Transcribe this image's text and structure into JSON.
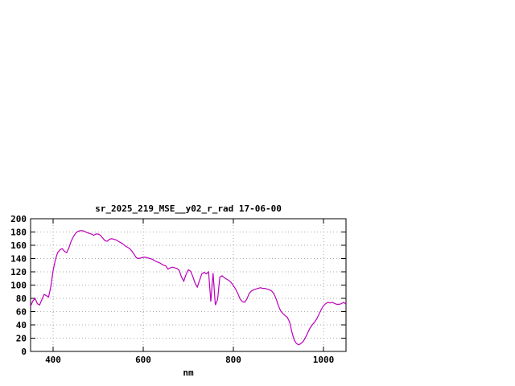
{
  "window": {
    "background_color": "#ffffff",
    "text_color": "#000000"
  },
  "chart_data": {
    "type": "line",
    "title": "sr_2025_219_MSE__y02_r_rad 17-06-00",
    "xlabel": "nm",
    "ylabel": "",
    "xlim": [
      350,
      1050
    ],
    "ylim": [
      0,
      200
    ],
    "x_ticks": [
      400,
      600,
      800,
      1000
    ],
    "y_ticks": [
      0,
      20,
      40,
      60,
      80,
      100,
      120,
      140,
      160,
      180,
      200
    ],
    "grid": true,
    "legend_position": "none",
    "grid_color": "#aaaaaa",
    "axis_color": "#000000",
    "line_color": "#bb00bb",
    "series": [
      {
        "name": "spectral-radiance",
        "x": [
          350,
          355,
          360,
          365,
          370,
          375,
          380,
          385,
          390,
          395,
          400,
          405,
          410,
          415,
          420,
          425,
          430,
          435,
          440,
          445,
          450,
          455,
          460,
          465,
          470,
          475,
          480,
          485,
          490,
          495,
          500,
          505,
          510,
          515,
          520,
          525,
          530,
          535,
          540,
          545,
          550,
          555,
          560,
          565,
          570,
          575,
          580,
          585,
          590,
          595,
          600,
          605,
          610,
          615,
          620,
          625,
          630,
          635,
          640,
          645,
          650,
          655,
          660,
          665,
          670,
          675,
          680,
          685,
          690,
          695,
          700,
          705,
          710,
          715,
          720,
          725,
          730,
          735,
          740,
          745,
          750,
          755,
          760,
          765,
          770,
          775,
          780,
          785,
          790,
          795,
          800,
          805,
          810,
          815,
          820,
          825,
          830,
          835,
          840,
          845,
          850,
          855,
          860,
          865,
          870,
          875,
          880,
          885,
          890,
          895,
          900,
          905,
          910,
          915,
          920,
          925,
          930,
          935,
          940,
          945,
          950,
          955,
          960,
          965,
          970,
          975,
          980,
          985,
          990,
          995,
          1000,
          1005,
          1010,
          1015,
          1020,
          1025,
          1030,
          1035,
          1040,
          1045,
          1050
        ],
        "y": [
          68,
          76,
          80,
          72,
          70,
          78,
          86,
          84,
          82,
          98,
          122,
          138,
          149,
          153,
          155,
          151,
          149,
          156,
          166,
          173,
          178,
          181,
          182,
          182,
          181,
          179,
          178,
          177,
          175,
          177,
          177,
          175,
          171,
          167,
          166,
          169,
          170,
          169,
          168,
          166,
          164,
          162,
          159,
          157,
          155,
          151,
          146,
          141,
          140,
          141,
          142,
          142,
          141,
          140,
          139,
          137,
          135,
          134,
          132,
          130,
          129,
          124,
          126,
          127,
          126,
          125,
          122,
          112,
          106,
          116,
          123,
          121,
          113,
          103,
          97,
          107,
          117,
          119,
          117,
          120,
          75,
          118,
          70,
          78,
          112,
          114,
          111,
          109,
          107,
          104,
          99,
          94,
          87,
          79,
          75,
          74,
          79,
          87,
          91,
          93,
          94,
          95,
          96,
          95,
          95,
          94,
          93,
          91,
          87,
          79,
          69,
          61,
          57,
          54,
          51,
          44,
          29,
          17,
          12,
          10,
          12,
          15,
          21,
          28,
          35,
          40,
          44,
          49,
          56,
          63,
          69,
          72,
          74,
          73,
          74,
          72,
          71,
          71,
          72,
          74,
          71
        ]
      }
    ]
  }
}
